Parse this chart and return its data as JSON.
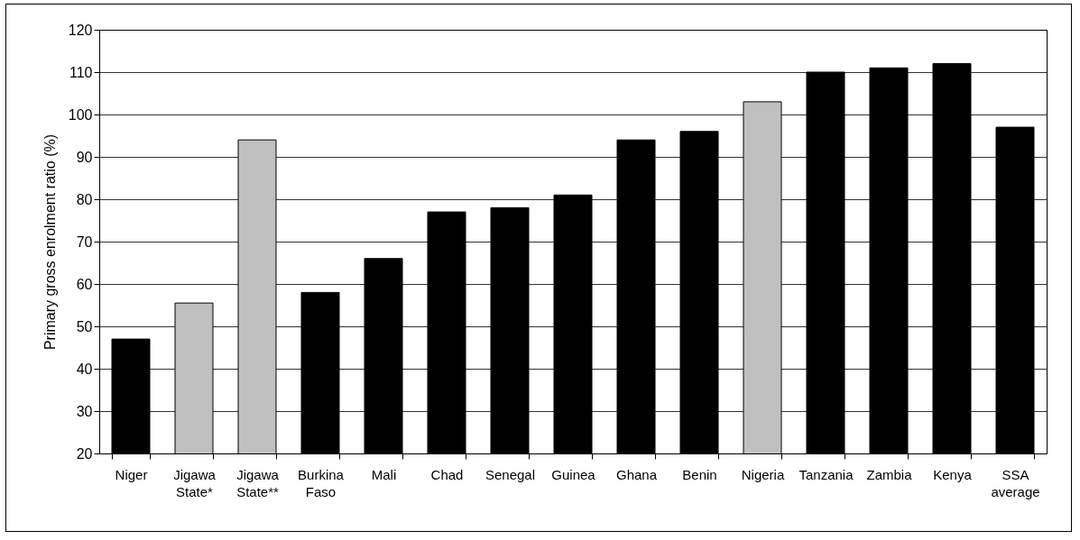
{
  "chart_data": {
    "type": "bar",
    "ylabel": "Primary gross enrolment ratio (%)",
    "categories": [
      "Niger",
      "Jigawa State*",
      "Jigawa State**",
      "Burkina Faso",
      "Mali",
      "Chad",
      "Senegal",
      "Guinea",
      "Ghana",
      "Benin",
      "Nigeria",
      "Tanzania",
      "Zambia",
      "Kenya",
      "SSA average"
    ],
    "values": [
      47,
      55.5,
      94,
      58,
      66,
      77,
      78,
      81,
      94,
      96,
      103,
      110,
      111,
      112,
      97
    ],
    "colors": [
      "#000000",
      "#c0c0c0",
      "#c0c0c0",
      "#000000",
      "#000000",
      "#000000",
      "#000000",
      "#000000",
      "#000000",
      "#000000",
      "#c0c0c0",
      "#000000",
      "#000000",
      "#000000",
      "#000000"
    ],
    "ylim": [
      20,
      120
    ],
    "yticks": [
      20,
      30,
      40,
      50,
      60,
      70,
      80,
      90,
      100,
      110,
      120
    ],
    "grid": "y"
  }
}
